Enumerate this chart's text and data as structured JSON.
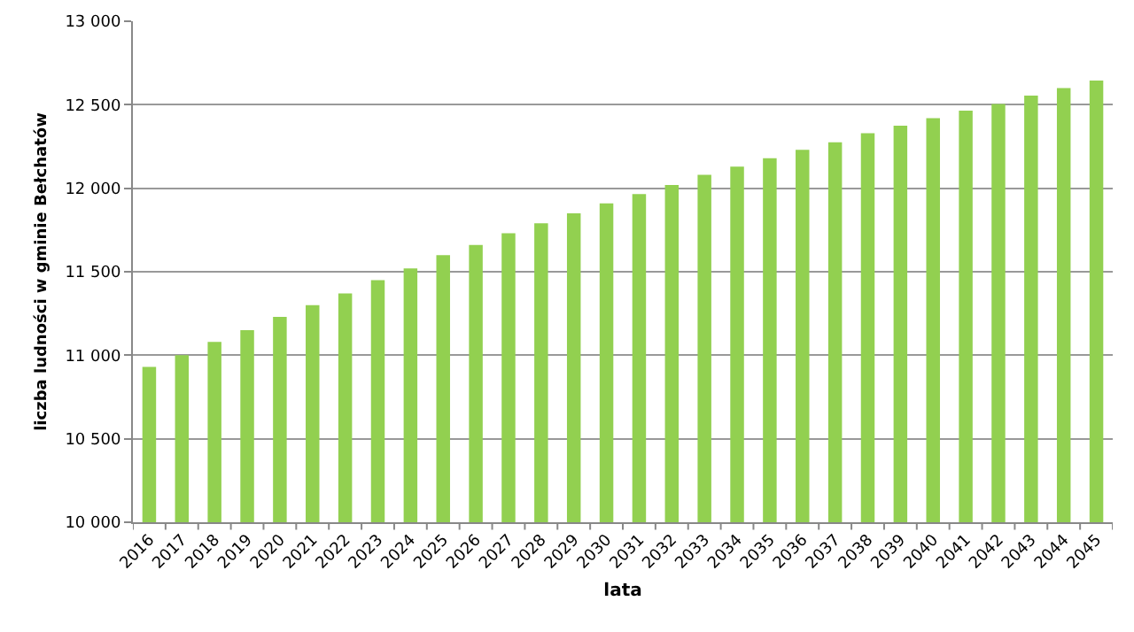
{
  "chart_data": {
    "type": "bar",
    "xlabel": "lata",
    "ylabel": "liczba ludności w gminie Bełchatów",
    "categories": [
      "2016",
      "2017",
      "2018",
      "2019",
      "2020",
      "2021",
      "2022",
      "2023",
      "2024",
      "2025",
      "2026",
      "2027",
      "2028",
      "2029",
      "2030",
      "2031",
      "2032",
      "2033",
      "2034",
      "2035",
      "2036",
      "2037",
      "2038",
      "2039",
      "2040",
      "2041",
      "2042",
      "2043",
      "2044",
      "2045"
    ],
    "values": [
      10930,
      11000,
      11080,
      11150,
      11230,
      11300,
      11370,
      11450,
      11520,
      11600,
      11660,
      11730,
      11790,
      11850,
      11910,
      11965,
      12020,
      12080,
      12130,
      12180,
      12230,
      12275,
      12330,
      12375,
      12420,
      12465,
      12505,
      12555,
      12600,
      12645
    ],
    "color": "#92d050",
    "ylim": [
      10000,
      13000
    ],
    "yticks": [
      {
        "value": 10000,
        "label": "10 000"
      },
      {
        "value": 10500,
        "label": "10 500"
      },
      {
        "value": 11000,
        "label": "11 000"
      },
      {
        "value": 11500,
        "label": "11 500"
      },
      {
        "value": 12000,
        "label": "12 000"
      },
      {
        "value": 12500,
        "label": "12 500"
      },
      {
        "value": 13000,
        "label": "13 000"
      }
    ],
    "grid": "y",
    "legend": false
  }
}
